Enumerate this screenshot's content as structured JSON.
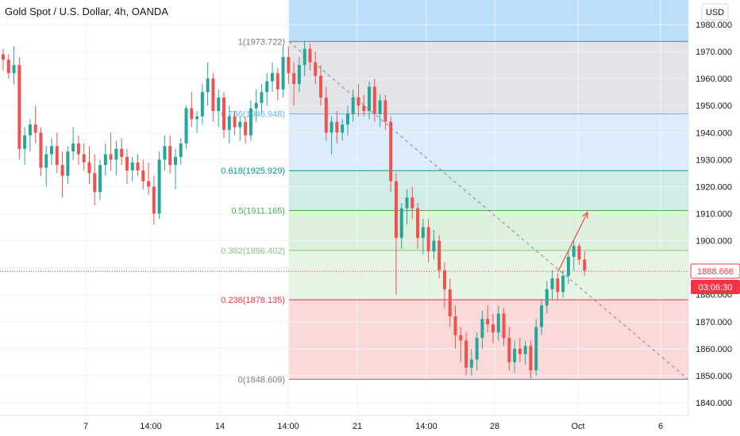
{
  "title": "Gold Spot / U.S. Dollar, 4h, OANDA",
  "currency": "USD",
  "last_price": "1888.666",
  "countdown": "03:06:30",
  "colors": {
    "up": "#26a69a",
    "down": "#ef5350",
    "price_line": "#e53935",
    "trendline": "#888888",
    "arrow": "#ef5350",
    "top_band": "#bbdefb"
  },
  "chart_data": {
    "type": "candlestick",
    "ylim": [
      1835,
      1985
    ],
    "y_ticks": [
      1840,
      1850,
      1860,
      1870,
      1880,
      1890,
      1900,
      1910,
      1920,
      1930,
      1940,
      1950,
      1960,
      1970,
      1980
    ],
    "y_tick_labels": [
      "1840.000",
      "1850.000",
      "1860.000",
      "1870.000",
      "1880.000",
      "1890.000",
      "1900.000",
      "1910.000",
      "1920.000",
      "1930.000",
      "1940.000",
      "1950.000",
      "1960.000",
      "1970.000",
      "1980.000"
    ],
    "x_tick_labels": [
      "7",
      "14:00",
      "14",
      "14:00",
      "21",
      "14:00",
      "28",
      "Oct",
      "6"
    ],
    "fibonacci": [
      {
        "label": "1(1973.722)",
        "price": 1973.722,
        "color": "#787b86",
        "fill": "#e3e4e7"
      },
      {
        "label": "0.786(1946.948)",
        "price": 1946.948,
        "color": "#64b5f6",
        "fill": "#dcecfa"
      },
      {
        "label": "0.618(1925.929)",
        "price": 1925.929,
        "color": "#089981",
        "fill": "#d1ece7"
      },
      {
        "label": "0.5(1911.165)",
        "price": 1911.165,
        "color": "#4caf50",
        "fill": "#dcf0dc"
      },
      {
        "label": "0.382(1896.402)",
        "price": 1896.402,
        "color": "#81c784",
        "fill": "#e6f4e4"
      },
      {
        "label": "0.236(1878.135)",
        "price": 1878.135,
        "color": "#f23645",
        "fill": "#fcd9d9"
      },
      {
        "label": "0(1848.609)",
        "price": 1848.609,
        "color": "#787b86",
        "fill": null
      }
    ],
    "trendline": {
      "from_price": 1973.722,
      "to_price": 1848.609
    },
    "projection": {
      "from_price": 1888.666,
      "to_price": 1910.5
    },
    "candles": [
      [
        1969,
        1971,
        1963,
        1967
      ],
      [
        1967,
        1969,
        1960,
        1962
      ],
      [
        1962,
        1972,
        1958,
        1965
      ],
      [
        1965,
        1968,
        1930,
        1934
      ],
      [
        1934,
        1942,
        1928,
        1939
      ],
      [
        1939,
        1945,
        1933,
        1943
      ],
      [
        1943,
        1950,
        1936,
        1940
      ],
      [
        1940,
        1942,
        1924,
        1927
      ],
      [
        1927,
        1935,
        1920,
        1932
      ],
      [
        1932,
        1938,
        1928,
        1935
      ],
      [
        1935,
        1940,
        1925,
        1928
      ],
      [
        1928,
        1933,
        1916,
        1924
      ],
      [
        1924,
        1935,
        1921,
        1933
      ],
      [
        1933,
        1942,
        1930,
        1936
      ],
      [
        1936,
        1939,
        1928,
        1932
      ],
      [
        1932,
        1936,
        1926,
        1929
      ],
      [
        1929,
        1935,
        1921,
        1925
      ],
      [
        1925,
        1932,
        1913,
        1918
      ],
      [
        1918,
        1930,
        1915,
        1928
      ],
      [
        1928,
        1936,
        1924,
        1932
      ],
      [
        1932,
        1940,
        1926,
        1930
      ],
      [
        1930,
        1937,
        1924,
        1934
      ],
      [
        1934,
        1938,
        1928,
        1931
      ],
      [
        1931,
        1934,
        1921,
        1926
      ],
      [
        1926,
        1931,
        1922,
        1929
      ],
      [
        1929,
        1932,
        1924,
        1926
      ],
      [
        1926,
        1930,
        1919,
        1922
      ],
      [
        1922,
        1929,
        1917,
        1920
      ],
      [
        1920,
        1924,
        1906,
        1910
      ],
      [
        1910,
        1933,
        1908,
        1930
      ],
      [
        1930,
        1939,
        1926,
        1935
      ],
      [
        1935,
        1939,
        1925,
        1928
      ],
      [
        1928,
        1934,
        1919,
        1931
      ],
      [
        1931,
        1938,
        1928,
        1936
      ],
      [
        1936,
        1950,
        1934,
        1949
      ],
      [
        1949,
        1955,
        1942,
        1945
      ],
      [
        1945,
        1948,
        1940,
        1946
      ],
      [
        1946,
        1958,
        1943,
        1955
      ],
      [
        1955,
        1966,
        1950,
        1960
      ],
      [
        1960,
        1962,
        1944,
        1948
      ],
      [
        1948,
        1956,
        1942,
        1953
      ],
      [
        1953,
        1955,
        1938,
        1941
      ],
      [
        1941,
        1950,
        1936,
        1946
      ],
      [
        1946,
        1948,
        1939,
        1942
      ],
      [
        1942,
        1946,
        1937,
        1944
      ],
      [
        1944,
        1946,
        1936,
        1939
      ],
      [
        1939,
        1952,
        1937,
        1949
      ],
      [
        1949,
        1956,
        1944,
        1951
      ],
      [
        1951,
        1958,
        1947,
        1955
      ],
      [
        1955,
        1962,
        1950,
        1959
      ],
      [
        1959,
        1966,
        1955,
        1962
      ],
      [
        1962,
        1964,
        1952,
        1956
      ],
      [
        1956,
        1972,
        1953,
        1968
      ],
      [
        1968,
        1972,
        1958,
        1962
      ],
      [
        1962,
        1966,
        1950,
        1958
      ],
      [
        1958,
        1968,
        1955,
        1965
      ],
      [
        1965,
        1974,
        1961,
        1971
      ],
      [
        1971,
        1973,
        1963,
        1966
      ],
      [
        1966,
        1970,
        1958,
        1961
      ],
      [
        1961,
        1965,
        1950,
        1953
      ],
      [
        1953,
        1957,
        1937,
        1940
      ],
      [
        1940,
        1946,
        1932,
        1944
      ],
      [
        1944,
        1948,
        1936,
        1940
      ],
      [
        1940,
        1945,
        1937,
        1943
      ],
      [
        1943,
        1950,
        1939,
        1947
      ],
      [
        1947,
        1956,
        1944,
        1953
      ],
      [
        1953,
        1958,
        1946,
        1950
      ],
      [
        1950,
        1954,
        1946,
        1948
      ],
      [
        1948,
        1959,
        1945,
        1957
      ],
      [
        1957,
        1960,
        1944,
        1947
      ],
      [
        1947,
        1954,
        1942,
        1952
      ],
      [
        1952,
        1954,
        1941,
        1944
      ],
      [
        1944,
        1946,
        1918,
        1922
      ],
      [
        1922,
        1925,
        1880,
        1901
      ],
      [
        1901,
        1914,
        1897,
        1912
      ],
      [
        1912,
        1919,
        1906,
        1916
      ],
      [
        1916,
        1920,
        1908,
        1912
      ],
      [
        1912,
        1914,
        1897,
        1901
      ],
      [
        1901,
        1908,
        1895,
        1905
      ],
      [
        1905,
        1908,
        1892,
        1896
      ],
      [
        1896,
        1904,
        1893,
        1900
      ],
      [
        1900,
        1902,
        1886,
        1889
      ],
      [
        1889,
        1892,
        1875,
        1882
      ],
      [
        1882,
        1886,
        1868,
        1872
      ],
      [
        1872,
        1876,
        1860,
        1865
      ],
      [
        1865,
        1868,
        1855,
        1863
      ],
      [
        1863,
        1866,
        1850,
        1853
      ],
      [
        1853,
        1860,
        1850,
        1856
      ],
      [
        1856,
        1866,
        1852,
        1864
      ],
      [
        1864,
        1874,
        1860,
        1871
      ],
      [
        1871,
        1876,
        1866,
        1869
      ],
      [
        1869,
        1873,
        1862,
        1866
      ],
      [
        1866,
        1876,
        1863,
        1873
      ],
      [
        1873,
        1875,
        1861,
        1864
      ],
      [
        1864,
        1868,
        1852,
        1855
      ],
      [
        1855,
        1863,
        1851,
        1860
      ],
      [
        1860,
        1864,
        1855,
        1858
      ],
      [
        1858,
        1863,
        1854,
        1861
      ],
      [
        1861,
        1863,
        1849,
        1852
      ],
      [
        1852,
        1871,
        1850,
        1868
      ],
      [
        1868,
        1878,
        1865,
        1876
      ],
      [
        1876,
        1885,
        1873,
        1882
      ],
      [
        1882,
        1889,
        1878,
        1886
      ],
      [
        1886,
        1888,
        1878,
        1881
      ],
      [
        1881,
        1889,
        1879,
        1887
      ],
      [
        1887,
        1896,
        1884,
        1894
      ],
      [
        1894,
        1900,
        1889,
        1898
      ],
      [
        1898,
        1899,
        1891,
        1893
      ],
      [
        1893,
        1896,
        1887,
        1889
      ]
    ]
  }
}
